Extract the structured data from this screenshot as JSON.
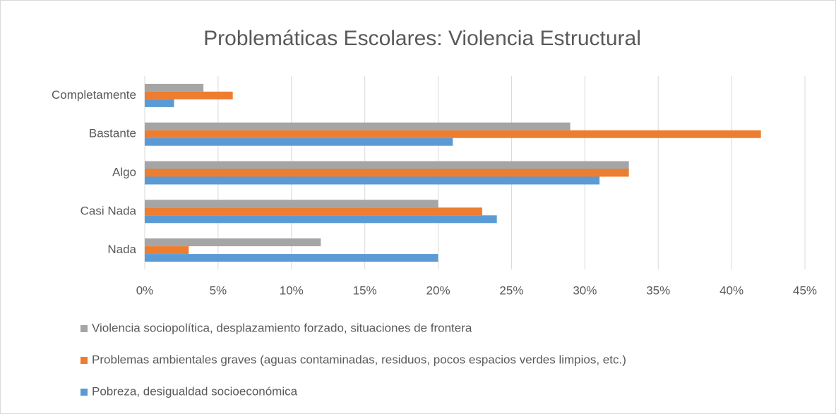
{
  "chart_data": {
    "type": "bar",
    "orientation": "horizontal",
    "title": "Problemáticas Escolares: Violencia Estructural",
    "categories": [
      "Completamente",
      "Bastante",
      "Algo",
      "Casi Nada",
      "Nada"
    ],
    "series": [
      {
        "name": "Violencia sociopolítica, desplazamiento forzado, situaciones de frontera",
        "color": "#a5a5a5",
        "values": [
          4,
          29,
          33,
          20,
          12
        ]
      },
      {
        "name": "Problemas ambientales graves (aguas contaminadas, residuos, pocos espacios verdes limpios, etc.)",
        "color": "#ed7d31",
        "values": [
          6,
          42,
          33,
          23,
          3
        ]
      },
      {
        "name": "Pobreza, desigualdad socioeconómica",
        "color": "#5b9bd5",
        "values": [
          2,
          21,
          31,
          24,
          20
        ]
      }
    ],
    "xlim": [
      0,
      45
    ],
    "xticks": [
      {
        "value": 0,
        "label": "0%"
      },
      {
        "value": 5,
        "label": "5%"
      },
      {
        "value": 10,
        "label": "10%"
      },
      {
        "value": 15,
        "label": "15%"
      },
      {
        "value": 20,
        "label": "20%"
      },
      {
        "value": 25,
        "label": "25%"
      },
      {
        "value": 30,
        "label": "30%"
      },
      {
        "value": 35,
        "label": "35%"
      },
      {
        "value": 40,
        "label": "40%"
      },
      {
        "value": 45,
        "label": "45%"
      }
    ],
    "grid": true,
    "legend": "bottom"
  }
}
